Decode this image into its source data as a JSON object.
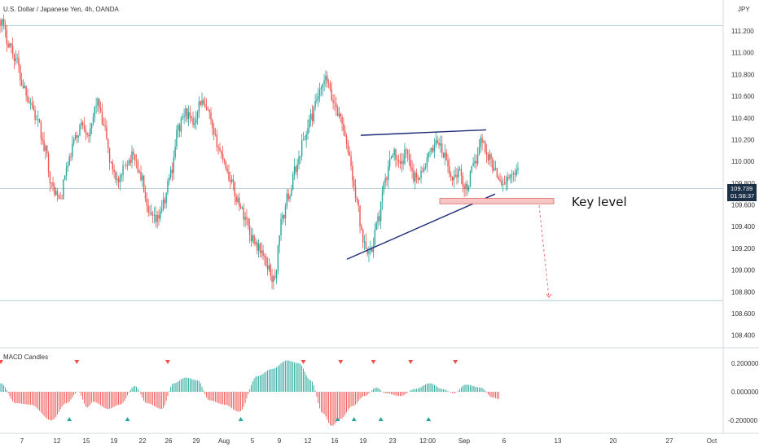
{
  "header": {
    "title": "U.S. Dollar / Japanese Yen, 4h, OANDA",
    "currency": "JPY"
  },
  "indicator": {
    "title": "MACD Candles"
  },
  "colors": {
    "up": "#26a69a",
    "down": "#ef5350",
    "trendline": "#1e2a78",
    "key_zone_fill": "#f5c6c3",
    "key_zone_border": "#e06666",
    "projection": "#e57373",
    "price_label_bg": "#1b2f46",
    "grid_line": "#9fc3c3"
  },
  "annotation": {
    "label": "Key level"
  },
  "last_price": {
    "price": "109.739",
    "countdown": "01:58:37"
  },
  "chart_data": [
    {
      "type": "candlestick",
      "title": "U.S. Dollar / Japanese Yen, 4h, OANDA",
      "ylim": [
        108.3,
        111.35
      ],
      "y_ticks": [
        "111.200",
        "111.000",
        "110.800",
        "110.600",
        "110.400",
        "110.200",
        "110.000",
        "109.800",
        "109.600",
        "109.400",
        "109.200",
        "109.000",
        "108.800",
        "108.600",
        "108.400"
      ],
      "x_ticks": [
        "7",
        "12",
        "15",
        "19",
        "22",
        "26",
        "29",
        "Aug",
        "5",
        "9",
        "12",
        "16",
        "19",
        "23",
        "12:00",
        "Sep",
        "6",
        "13",
        "20",
        "27",
        "Oct"
      ],
      "path": [
        111.3,
        111.1,
        110.95,
        110.7,
        110.55,
        110.35,
        110.1,
        109.75,
        109.65,
        109.95,
        110.2,
        110.35,
        110.25,
        110.55,
        110.3,
        109.95,
        109.8,
        110.0,
        110.05,
        109.85,
        109.5,
        109.45,
        109.6,
        109.9,
        110.3,
        110.45,
        110.35,
        110.55,
        110.45,
        110.2,
        110.05,
        109.85,
        109.65,
        109.5,
        109.3,
        109.2,
        109.05,
        108.9,
        109.45,
        109.7,
        109.95,
        110.2,
        110.4,
        110.6,
        110.75,
        110.55,
        110.4,
        110.1,
        109.7,
        109.3,
        109.15,
        109.45,
        109.8,
        110.1,
        109.95,
        110.1,
        109.85,
        109.9,
        110.05,
        110.2,
        110.05,
        109.85,
        109.9,
        109.75,
        109.95,
        110.2,
        110.05,
        109.9,
        109.8,
        109.85,
        109.95
      ],
      "key_level": [
        109.61,
        109.66
      ],
      "key_level_label": "Key level",
      "rising_trendline": [
        109.1,
        109.7
      ],
      "flat_trendline": [
        110.24,
        110.29
      ],
      "projection_target": 108.75,
      "horizontal_lines": [
        111.25,
        109.75,
        108.72
      ],
      "last_price": 109.739,
      "grid": false
    },
    {
      "type": "bar",
      "title": "MACD Candles",
      "ylim": [
        -0.28,
        0.28
      ],
      "y_ticks": [
        "0.200000",
        "0.000000",
        "-0.200000"
      ],
      "anchors": [
        [
          0,
          0.06
        ],
        [
          10,
          -0.08
        ],
        [
          20,
          -0.09
        ],
        [
          34,
          -0.2
        ],
        [
          44,
          -0.08
        ],
        [
          52,
          0.0
        ],
        [
          58,
          -0.11
        ],
        [
          62,
          -0.07
        ],
        [
          72,
          -0.12
        ],
        [
          80,
          -0.09
        ],
        [
          90,
          0.04
        ],
        [
          98,
          -0.08
        ],
        [
          108,
          -0.12
        ],
        [
          116,
          0.06
        ],
        [
          124,
          0.1
        ],
        [
          132,
          0.08
        ],
        [
          140,
          -0.06
        ],
        [
          150,
          -0.09
        ],
        [
          160,
          -0.14
        ],
        [
          172,
          0.11
        ],
        [
          182,
          0.16
        ],
        [
          192,
          0.22
        ],
        [
          200,
          0.2
        ],
        [
          208,
          0.08
        ],
        [
          216,
          -0.15
        ],
        [
          222,
          -0.24
        ],
        [
          228,
          -0.19
        ],
        [
          236,
          -0.1
        ],
        [
          244,
          -0.03
        ],
        [
          252,
          0.03
        ],
        [
          258,
          -0.01
        ],
        [
          268,
          -0.03
        ],
        [
          278,
          0.02
        ],
        [
          288,
          0.06
        ],
        [
          296,
          0.02
        ],
        [
          304,
          -0.01
        ],
        [
          312,
          0.05
        ],
        [
          322,
          0.03
        ],
        [
          330,
          -0.04
        ],
        [
          334,
          -0.05
        ]
      ],
      "markers_down": [
        0,
        51,
        112,
        203,
        228,
        250,
        275,
        305
      ],
      "markers_up": [
        46,
        85,
        161,
        226,
        237,
        255,
        287
      ]
    }
  ]
}
